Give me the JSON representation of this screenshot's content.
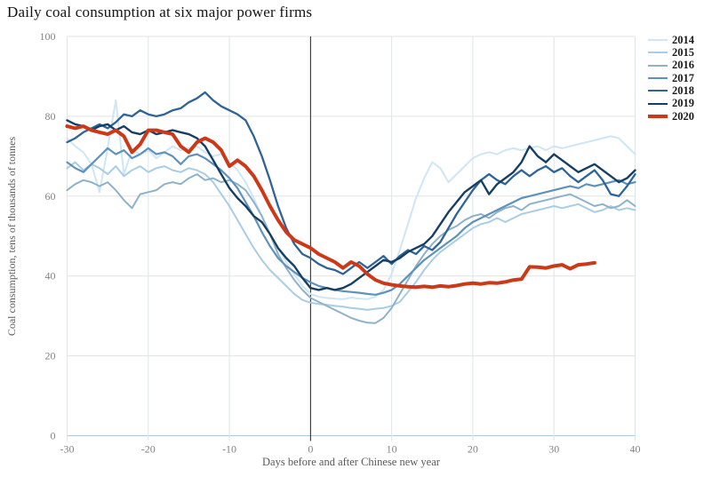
{
  "title": "Daily coal consumption at six major power firms",
  "colors": {
    "background": "#ffffff",
    "grid_horizontal": "#e3e3e3",
    "grid_vertical": "#dde4ea",
    "axis_baseline": "#aec8dd",
    "zero_day_line": "#1f1f1f",
    "tick_text": "#828282",
    "axis_label_text": "#595959",
    "title_text": "#141414",
    "legend_text": "#1a1a1a",
    "accent_2020": "#cc3918"
  },
  "legend_position": "right",
  "chart_data": {
    "type": "line",
    "title": "Daily coal consumption at six major power firms",
    "xlabel": "Days before and after Chinese new year",
    "ylabel": "Coal consumption, tens of thousands of tonnes",
    "xlim": [
      -30,
      40
    ],
    "ylim": [
      0,
      100
    ],
    "x_ticks": [
      -30,
      -20,
      -10,
      0,
      10,
      20,
      30,
      40
    ],
    "y_ticks": [
      0,
      20,
      40,
      60,
      80,
      100
    ],
    "grid": true,
    "zero_line_x": 0,
    "legend_position": "right",
    "x_days": [
      -30,
      -29,
      -28,
      -27,
      -26,
      -25,
      -24,
      -23,
      -22,
      -21,
      -20,
      -19,
      -18,
      -17,
      -16,
      -15,
      -14,
      -13,
      -12,
      -11,
      -10,
      -9,
      -8,
      -7,
      -6,
      -5,
      -4,
      -3,
      -2,
      -1,
      0,
      1,
      2,
      3,
      4,
      5,
      6,
      7,
      8,
      9,
      10,
      11,
      12,
      13,
      14,
      15,
      16,
      17,
      18,
      19,
      20,
      21,
      22,
      23,
      24,
      25,
      26,
      27,
      28,
      29,
      30,
      31,
      32,
      33,
      34,
      35,
      36,
      37,
      38,
      39,
      40
    ],
    "series": [
      {
        "name": "2014",
        "color": "#cfe6f3",
        "line_width": 2,
        "values": [
          74.5,
          72.5,
          71,
          68,
          61,
          72,
          84,
          65.5,
          71.5,
          70.5,
          71.5,
          69.5,
          71,
          72.5,
          71.5,
          72,
          72.5,
          71,
          70,
          70.5,
          68.5,
          66.5,
          63.5,
          59.5,
          55,
          50.5,
          47,
          43.5,
          40.5,
          37.5,
          35.5,
          34.8,
          34.5,
          34.3,
          34.2,
          34.6,
          34.3,
          34.2,
          34.8,
          36.5,
          40.5,
          46.5,
          53,
          59.5,
          64.5,
          68.5,
          67,
          63.5,
          65.5,
          67.5,
          69.5,
          70.5,
          71,
          70.5,
          71.5,
          72,
          71.5,
          72,
          72.5,
          71.5,
          72.5,
          72,
          72.5,
          73,
          73.5,
          74,
          74.5,
          75,
          74.5,
          72.5,
          70.5
        ]
      },
      {
        "name": "2015",
        "color": "#a9cde3",
        "line_width": 2,
        "values": [
          67,
          68.5,
          66.5,
          68,
          67,
          65.5,
          67.5,
          65,
          66.5,
          67.5,
          66,
          67,
          67.5,
          66.5,
          66,
          67,
          66.5,
          65.5,
          63.5,
          60.5,
          57.5,
          54,
          50.5,
          47,
          44,
          41.5,
          39.5,
          37.5,
          35.5,
          34,
          33.3,
          33,
          32.8,
          32.5,
          32.3,
          32,
          31.8,
          31.5,
          31.8,
          32,
          32.5,
          33.5,
          36,
          38.5,
          41.5,
          44,
          46,
          47.5,
          49,
          50.5,
          52,
          53,
          53.5,
          54.5,
          53.5,
          54.5,
          55.5,
          56,
          56.5,
          57,
          57.5,
          57,
          57.5,
          58,
          57,
          56,
          56.5,
          57.5,
          56.5,
          57,
          56.5
        ]
      },
      {
        "name": "2016",
        "color": "#8fb2c9",
        "line_width": 2,
        "values": [
          61.5,
          63,
          64,
          63.5,
          62.5,
          63.5,
          61.5,
          59,
          57,
          60.5,
          61,
          61.5,
          63,
          63.5,
          63,
          64.5,
          65.5,
          64,
          64.5,
          63.5,
          64,
          63,
          61.5,
          58.5,
          55,
          50.5,
          45.5,
          42,
          39,
          36.5,
          34.5,
          33.5,
          32.5,
          31.5,
          30.5,
          29.5,
          28.8,
          28.3,
          28.2,
          29.5,
          32,
          35.5,
          39,
          42.5,
          45.5,
          48,
          50,
          51.5,
          52.5,
          54,
          55,
          55.5,
          54.5,
          56,
          57,
          57.5,
          56.5,
          58,
          58.5,
          59,
          59.5,
          60,
          60.5,
          59.5,
          58.5,
          57.5,
          58,
          57,
          57.5,
          59,
          57.5
        ]
      },
      {
        "name": "2017",
        "color": "#5d92bb",
        "line_width": 2.2,
        "values": [
          68.5,
          67,
          66,
          68,
          70,
          72,
          70.5,
          71.5,
          69.5,
          70.5,
          72,
          70.5,
          71,
          70,
          68,
          70,
          70.5,
          69.5,
          68,
          66.5,
          64.5,
          62,
          58.5,
          55,
          51,
          47.5,
          44.5,
          42.5,
          41,
          39.5,
          38.4,
          37.5,
          37,
          36.5,
          36.2,
          36,
          35.8,
          35.5,
          35.3,
          35.8,
          36.5,
          38,
          40,
          42,
          44,
          45.5,
          47,
          48.5,
          50,
          52,
          53.5,
          54.5,
          55.5,
          56.5,
          57.5,
          58.5,
          59.5,
          60,
          60.5,
          61,
          61.5,
          62,
          62.5,
          62,
          63,
          62.5,
          63,
          63.5,
          64,
          63,
          63.5
        ]
      },
      {
        "name": "2018",
        "color": "#2e6496",
        "line_width": 2.3,
        "values": [
          73.5,
          74.5,
          76,
          77,
          78,
          77,
          78.5,
          80.5,
          80,
          81.5,
          80.5,
          80,
          80.5,
          81.5,
          82,
          83.5,
          84.5,
          86,
          84,
          82.5,
          81.5,
          80.5,
          79,
          75,
          70,
          64,
          57.5,
          52,
          48,
          45.5,
          44.5,
          43,
          42,
          41.5,
          40.5,
          42,
          43.5,
          42,
          43.5,
          45,
          43,
          45,
          46.5,
          45.5,
          47.5,
          46.5,
          48.5,
          52,
          55.5,
          58.5,
          61.5,
          64,
          65.5,
          64,
          63,
          65,
          66.5,
          65,
          66.5,
          67.5,
          66,
          67,
          65,
          63.5,
          65,
          66.5,
          64,
          60.5,
          60,
          62.5,
          65.5
        ]
      },
      {
        "name": "2019",
        "color": "#173f63",
        "line_width": 2.4,
        "values": [
          79,
          78,
          77.5,
          76.5,
          77.5,
          78,
          76.5,
          77.5,
          76,
          75.5,
          76.5,
          75.5,
          76,
          76.5,
          76,
          75.5,
          74.5,
          72.5,
          69,
          65.5,
          62,
          59.5,
          57.5,
          55,
          53.5,
          50.5,
          47,
          44.5,
          42.5,
          39.5,
          37,
          36.5,
          37,
          36.5,
          37,
          38,
          39.5,
          41,
          42.5,
          44,
          43.5,
          44.5,
          46,
          47,
          48,
          50,
          53,
          56,
          58.5,
          61,
          62.5,
          64,
          60.5,
          63,
          64.5,
          66,
          68.5,
          72.5,
          70,
          68.5,
          70.5,
          69,
          67.5,
          66,
          67,
          68,
          66.5,
          65,
          63.5,
          64.5,
          66.5
        ]
      },
      {
        "name": "2020",
        "color": "#cc3918",
        "line_width": 4,
        "values": [
          77.5,
          77,
          77.5,
          76.5,
          76,
          75.5,
          76.5,
          75,
          71,
          73,
          76.5,
          76.5,
          76,
          75.5,
          72.5,
          71,
          73.5,
          74.5,
          73.5,
          71.5,
          67.5,
          69,
          67.5,
          65,
          61.5,
          57.5,
          54,
          51,
          49,
          48,
          47,
          45.5,
          44.5,
          43.5,
          42,
          43.5,
          42.5,
          40.5,
          39,
          38.2,
          37.8,
          37.5,
          37.3,
          37.2,
          37.4,
          37.2,
          37.5,
          37.3,
          37.6,
          38,
          38.2,
          38,
          38.3,
          38.2,
          38.5,
          39,
          39.2,
          42.3,
          42.2,
          42,
          42.5,
          42.8,
          41.8,
          42.8,
          43,
          43.3
        ]
      }
    ]
  }
}
